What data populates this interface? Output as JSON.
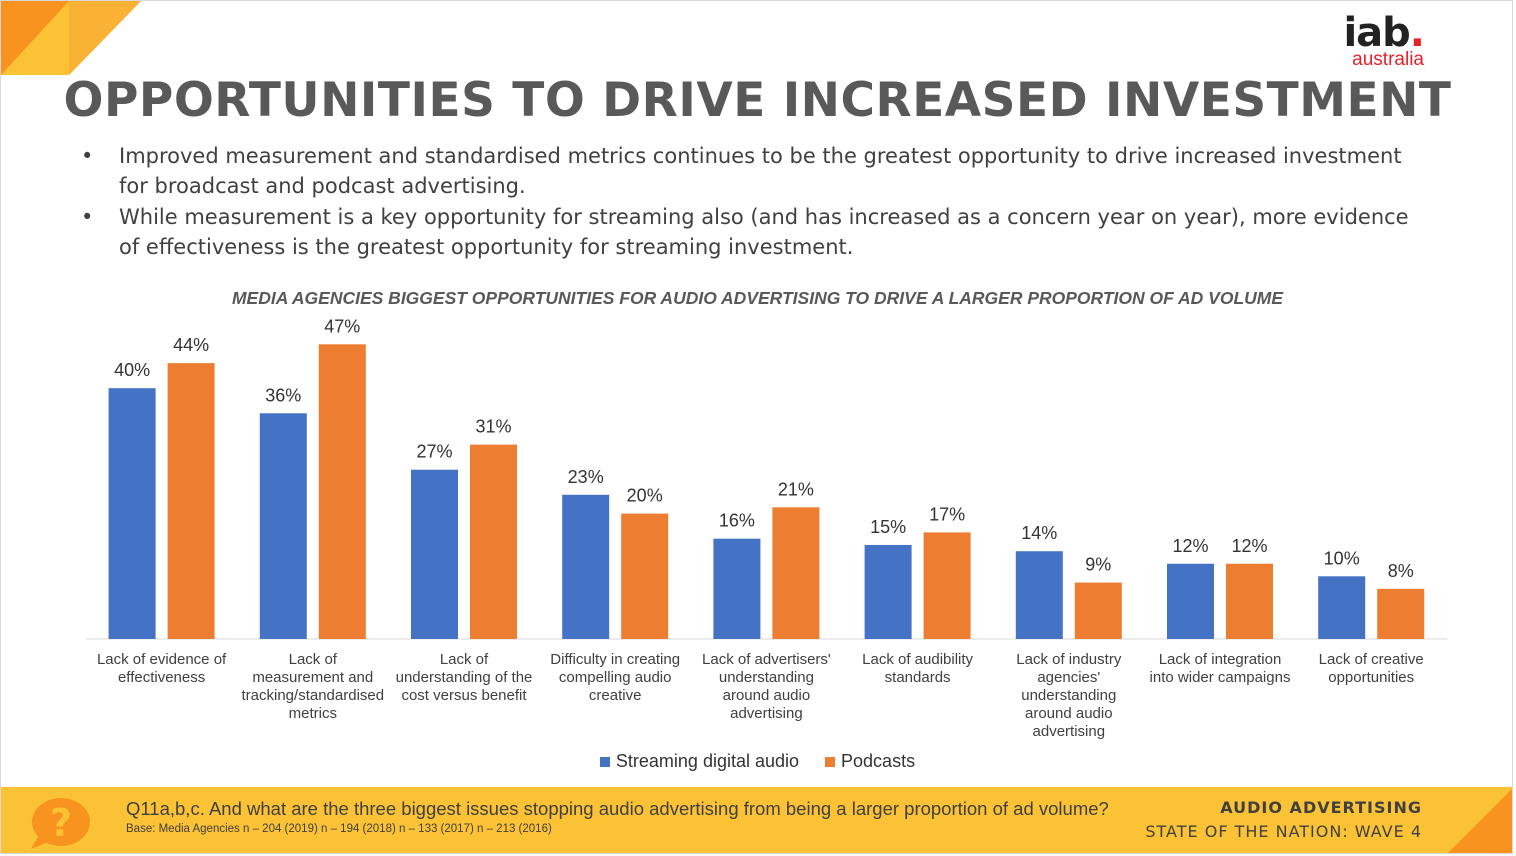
{
  "slide": {
    "title": "OPPORTUNITIES TO DRIVE INCREASED INVESTMENT",
    "bullets": [
      "Improved measurement and standardised metrics continues to be the greatest opportunity to drive increased investment for broadcast and podcast advertising.",
      "While measurement is a key opportunity for streaming also (and has increased as a concern year on year), more evidence of effectiveness is the greatest opportunity for streaming investment."
    ],
    "bullet_symbol": "•"
  },
  "logo": {
    "iab": "iab",
    "dot": ".",
    "sub": "australia"
  },
  "footer": {
    "question": "Q11a,b,c. And what are the three biggest issues stopping audio advertising from being a larger proportion of ad volume?",
    "base": "Base: Media Agencies n – 204 (2019) n – 194 (2018) n – 133 (2017) n – 213 (2016)",
    "brand_line1": "AUDIO ADVERTISING",
    "brand_line2": "STATE OF THE NATION: WAVE 4",
    "icon_glyph": "?"
  },
  "colors": {
    "streaming": "#4472c4",
    "podcasts": "#ed7d31",
    "footer_bg": "#fcc236",
    "accent_orange": "#f7931e",
    "iab_red": "#e8202a"
  },
  "chart_data": {
    "type": "bar",
    "title": "MEDIA AGENCIES BIGGEST OPPORTUNITIES FOR AUDIO ADVERTISING TO DRIVE A LARGER PROPORTION OF AD VOLUME",
    "categories": [
      [
        "Lack of evidence of",
        "effectiveness"
      ],
      [
        "Lack of",
        "measurement and",
        "tracking/standardised",
        "metrics"
      ],
      [
        "Lack of",
        "understanding of the",
        "cost versus benefit"
      ],
      [
        "Difficulty in creating",
        "compelling audio",
        "creative"
      ],
      [
        "Lack of advertisers'",
        "understanding",
        "around audio",
        "advertising"
      ],
      [
        "Lack of audibility",
        "standards"
      ],
      [
        "Lack of industry",
        "agencies'",
        "understanding",
        "around audio",
        "advertising"
      ],
      [
        "Lack of integration",
        "into wider campaigns"
      ],
      [
        "Lack of creative",
        "opportunities"
      ]
    ],
    "series": [
      {
        "name": "Streaming digital audio",
        "values": [
          40,
          36,
          27,
          23,
          16,
          15,
          14,
          12,
          10
        ],
        "labels": [
          "40%",
          "36%",
          "27%",
          "23%",
          "16%",
          "15%",
          "14%",
          "12%",
          "10%"
        ]
      },
      {
        "name": "Podcasts",
        "values": [
          44,
          47,
          31,
          20,
          21,
          17,
          9,
          12,
          8
        ],
        "labels": [
          "44%",
          "47%",
          "31%",
          "20%",
          "21%",
          "17%",
          "9%",
          "12%",
          "8%"
        ]
      }
    ],
    "ylim": [
      0,
      50
    ],
    "grid": false,
    "legend": "bottom"
  }
}
